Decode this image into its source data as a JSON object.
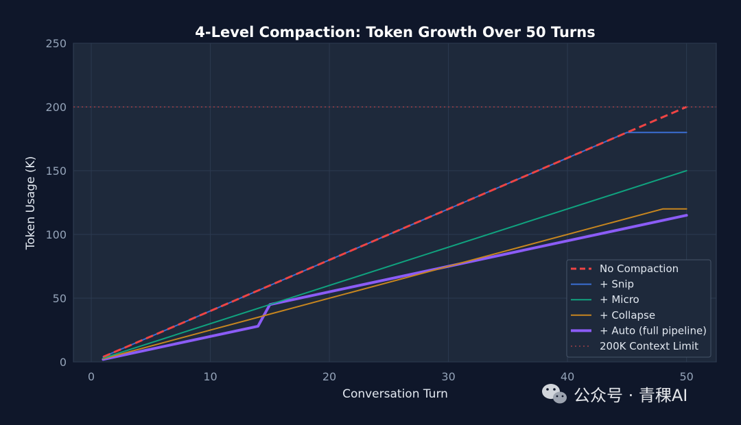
{
  "chart_data": {
    "type": "line",
    "title": "4-Level Compaction: Token Growth Over 50 Turns",
    "xlabel": "Conversation Turn",
    "ylabel": "Token Usage (K)",
    "xlim": [
      -1.5,
      52.5
    ],
    "ylim": [
      0,
      250
    ],
    "xticks": [
      0,
      10,
      20,
      30,
      40,
      50
    ],
    "yticks": [
      0,
      50,
      100,
      150,
      200,
      250
    ],
    "grid": true,
    "legend_position": "lower-right",
    "series": [
      {
        "name": "No Compaction",
        "color": "#ef4444",
        "style": "dashed",
        "points": [
          [
            1,
            4
          ],
          [
            50,
            200
          ]
        ]
      },
      {
        "name": "+ Snip",
        "color": "#3b6fd4",
        "style": "solid",
        "points": [
          [
            1,
            4
          ],
          [
            45,
            180
          ],
          [
            50,
            180
          ]
        ]
      },
      {
        "name": "+ Micro",
        "color": "#10a37f",
        "style": "solid",
        "points": [
          [
            1,
            3
          ],
          [
            50,
            150
          ]
        ]
      },
      {
        "name": "+ Collapse",
        "color": "#c7861f",
        "style": "solid",
        "points": [
          [
            1,
            2.5
          ],
          [
            48,
            120
          ],
          [
            50,
            120
          ]
        ]
      },
      {
        "name": "+ Auto (full pipeline)",
        "color": "#8b5cf6",
        "style": "thick",
        "points": [
          [
            1,
            2
          ],
          [
            14,
            28
          ],
          [
            15,
            45
          ],
          [
            30,
            75
          ],
          [
            50,
            115
          ]
        ]
      }
    ],
    "reference_lines": [
      {
        "name": "200K Context Limit",
        "y": 200,
        "color": "#7f3a44",
        "style": "dotted"
      }
    ]
  },
  "watermark": {
    "icon": "wechat-icon",
    "text": "公众号 · 青稞AI"
  }
}
